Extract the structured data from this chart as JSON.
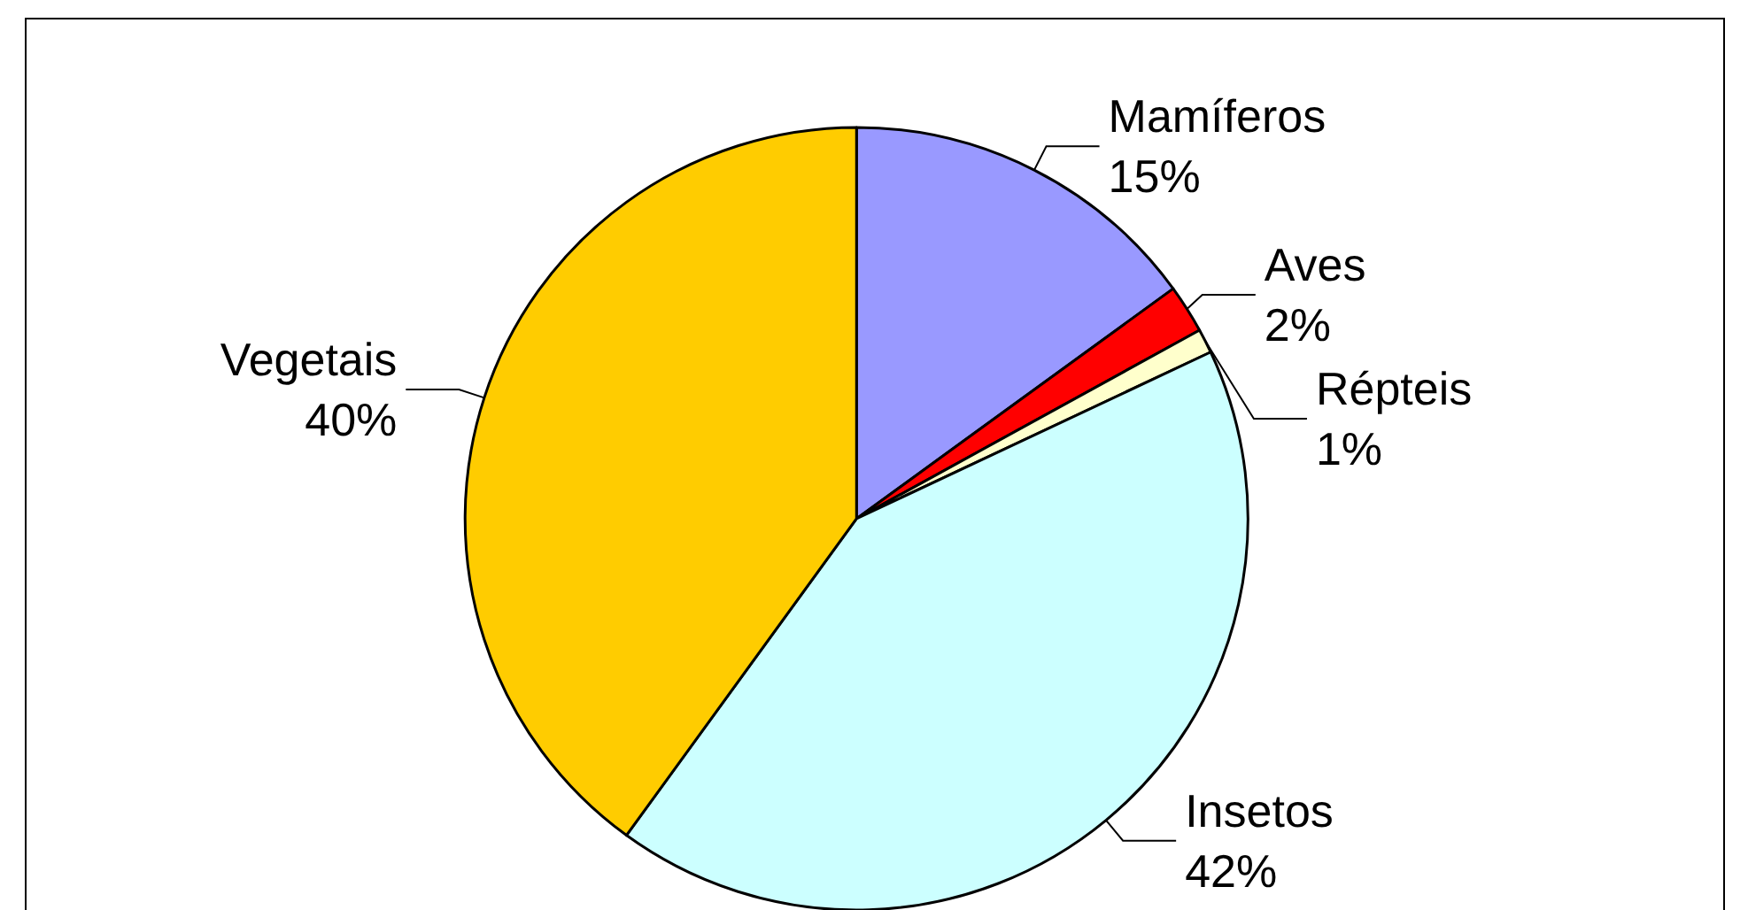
{
  "chart_data": {
    "type": "pie",
    "categories": [
      "Mamíferos",
      "Aves",
      "Répteis",
      "Insetos",
      "Vegetais"
    ],
    "values": [
      15,
      2,
      1,
      42,
      40
    ],
    "colors": [
      "#9999ff",
      "#ff0000",
      "#ffffcc",
      "#ccffff",
      "#ffcc00"
    ],
    "value_labels": [
      "15%",
      "2%",
      "1%",
      "42%",
      "40%"
    ],
    "legend": false
  }
}
